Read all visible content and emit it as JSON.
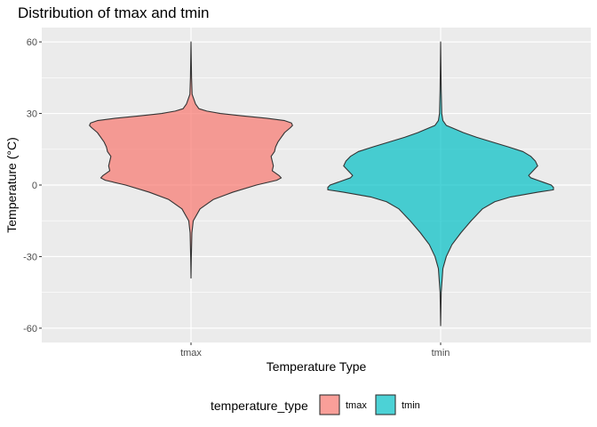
{
  "chart_data": {
    "type": "violin",
    "title": "Distribution of tmax and tmin",
    "xlabel": "Temperature Type",
    "ylabel": "Temperature (°C)",
    "categories": [
      "tmax",
      "tmin"
    ],
    "ylim": [
      -66,
      66
    ],
    "y_ticks": [
      -60,
      -30,
      0,
      30,
      60
    ],
    "y_minor_ticks": [
      -45,
      -15,
      15,
      45
    ],
    "grid": true,
    "legend": {
      "title": "temperature_type",
      "position": "bottom",
      "entries": [
        "tmax",
        "tmin"
      ]
    },
    "series": [
      {
        "name": "tmax",
        "color": "#F8766D",
        "min": -39,
        "max": 60,
        "density": [
          [
            -39,
            0.0
          ],
          [
            -30,
            0.003
          ],
          [
            -20,
            0.008
          ],
          [
            -15,
            0.02
          ],
          [
            -10,
            0.08
          ],
          [
            -6,
            0.2
          ],
          [
            -3,
            0.37
          ],
          [
            0,
            0.58
          ],
          [
            2,
            0.76
          ],
          [
            3,
            0.8
          ],
          [
            4,
            0.78
          ],
          [
            6,
            0.72
          ],
          [
            8,
            0.73
          ],
          [
            10,
            0.72
          ],
          [
            12,
            0.71
          ],
          [
            14,
            0.74
          ],
          [
            16,
            0.75
          ],
          [
            18,
            0.77
          ],
          [
            20,
            0.8
          ],
          [
            22,
            0.83
          ],
          [
            24,
            0.88
          ],
          [
            25,
            0.9
          ],
          [
            26,
            0.89
          ],
          [
            27,
            0.83
          ],
          [
            28,
            0.67
          ],
          [
            29,
            0.45
          ],
          [
            30,
            0.26
          ],
          [
            31,
            0.14
          ],
          [
            32,
            0.07
          ],
          [
            34,
            0.04
          ],
          [
            36,
            0.025
          ],
          [
            38,
            0.01
          ],
          [
            45,
            0.005
          ],
          [
            60,
            0.0
          ]
        ]
      },
      {
        "name": "tmin",
        "color": "#00BFC4",
        "min": -59,
        "max": 60,
        "density": [
          [
            -59,
            0.0
          ],
          [
            -45,
            0.005
          ],
          [
            -35,
            0.02
          ],
          [
            -30,
            0.05
          ],
          [
            -25,
            0.1
          ],
          [
            -20,
            0.18
          ],
          [
            -15,
            0.27
          ],
          [
            -10,
            0.37
          ],
          [
            -7,
            0.48
          ],
          [
            -5,
            0.62
          ],
          [
            -3,
            0.86
          ],
          [
            -2,
            1.0
          ],
          [
            -1,
            1.0
          ],
          [
            0,
            0.98
          ],
          [
            1,
            0.92
          ],
          [
            2,
            0.86
          ],
          [
            3,
            0.8
          ],
          [
            4,
            0.78
          ],
          [
            6,
            0.82
          ],
          [
            8,
            0.86
          ],
          [
            10,
            0.84
          ],
          [
            12,
            0.8
          ],
          [
            14,
            0.73
          ],
          [
            16,
            0.6
          ],
          [
            18,
            0.46
          ],
          [
            20,
            0.32
          ],
          [
            22,
            0.2
          ],
          [
            24,
            0.1
          ],
          [
            25,
            0.05
          ],
          [
            27,
            0.02
          ],
          [
            30,
            0.01
          ],
          [
            40,
            0.005
          ],
          [
            60,
            0.0
          ]
        ]
      }
    ]
  }
}
